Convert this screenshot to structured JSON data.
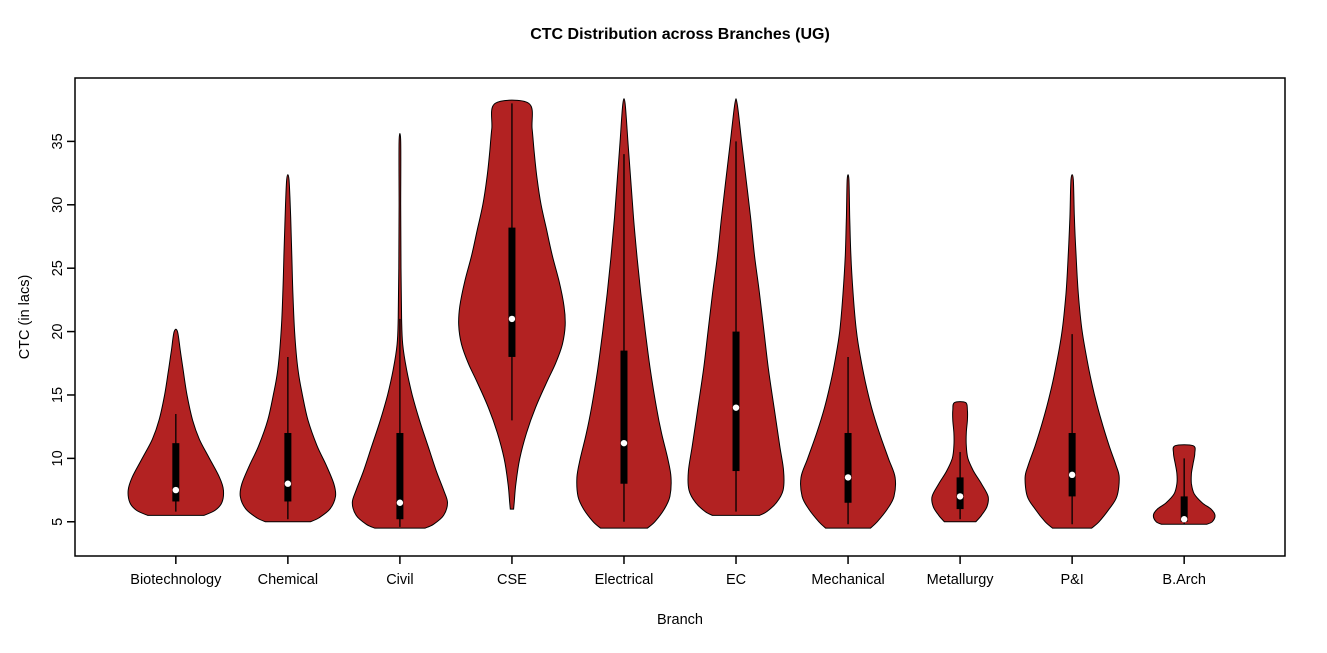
{
  "chart_data": {
    "type": "violin",
    "title": "CTC Distribution across Branches (UG)",
    "xlabel": "Branch",
    "ylabel": "CTC (in lacs)",
    "ylim": [
      2.3,
      40
    ],
    "yticks": [
      5,
      10,
      15,
      20,
      25,
      30,
      35
    ],
    "x_expansion": 0.04,
    "grid": false,
    "legend": "none",
    "categories": [
      "Biotechnology",
      "Chemical",
      "Civil",
      "CSE",
      "Electrical",
      "EC",
      "Mechanical",
      "Metallurgy",
      "P&I",
      "B.Arch"
    ],
    "colors": {
      "violin_fill": "#b22222",
      "violin_stroke": "#000000",
      "box": "#000000",
      "median_dot": "#ffffff",
      "axis": "#000000",
      "background": "#ffffff"
    },
    "series": [
      {
        "name": "Biotechnology",
        "min": 5.5,
        "max": 20,
        "median": 7.5,
        "q1": 6.6,
        "q3": 11.2,
        "whisker_low": 5.8,
        "whisker_high": 13.5,
        "profile": [
          [
            5.5,
            0.5
          ],
          [
            5.9,
            0.7
          ],
          [
            6.5,
            0.82
          ],
          [
            7.5,
            0.85
          ],
          [
            8.5,
            0.78
          ],
          [
            10,
            0.6
          ],
          [
            11.5,
            0.42
          ],
          [
            13,
            0.3
          ],
          [
            15,
            0.2
          ],
          [
            17,
            0.13
          ],
          [
            18.5,
            0.08
          ],
          [
            20,
            0.03
          ]
        ]
      },
      {
        "name": "Chemical",
        "min": 5.0,
        "max": 32,
        "median": 8.0,
        "q1": 6.6,
        "q3": 12.0,
        "whisker_low": 5.2,
        "whisker_high": 18.0,
        "profile": [
          [
            5.0,
            0.4
          ],
          [
            5.3,
            0.55
          ],
          [
            6.0,
            0.75
          ],
          [
            7.0,
            0.85
          ],
          [
            8.0,
            0.82
          ],
          [
            9.5,
            0.68
          ],
          [
            11,
            0.52
          ],
          [
            13,
            0.36
          ],
          [
            15,
            0.26
          ],
          [
            17,
            0.18
          ],
          [
            20,
            0.12
          ],
          [
            23,
            0.09
          ],
          [
            26,
            0.07
          ],
          [
            29,
            0.05
          ],
          [
            32,
            0.02
          ]
        ]
      },
      {
        "name": "Civil",
        "min": 4.5,
        "max": 35,
        "median": 6.5,
        "q1": 5.2,
        "q3": 12.0,
        "whisker_low": 4.6,
        "whisker_high": 21.0,
        "profile": [
          [
            4.5,
            0.45
          ],
          [
            4.8,
            0.6
          ],
          [
            5.5,
            0.78
          ],
          [
            6.5,
            0.85
          ],
          [
            7.5,
            0.78
          ],
          [
            9,
            0.65
          ],
          [
            11,
            0.5
          ],
          [
            13,
            0.35
          ],
          [
            15,
            0.22
          ],
          [
            17,
            0.12
          ],
          [
            19,
            0.05
          ],
          [
            21,
            0.03
          ],
          [
            25,
            0.02
          ],
          [
            30,
            0.015
          ],
          [
            35,
            0.015
          ]
        ]
      },
      {
        "name": "CSE",
        "min": 6.0,
        "max": 38,
        "median": 21.0,
        "q1": 18.0,
        "q3": 28.2,
        "whisker_low": 13.0,
        "whisker_high": 38.0,
        "profile": [
          [
            6,
            0.03
          ],
          [
            6.5,
            0.04
          ],
          [
            8,
            0.07
          ],
          [
            10,
            0.14
          ],
          [
            12,
            0.26
          ],
          [
            14,
            0.42
          ],
          [
            16,
            0.62
          ],
          [
            17.5,
            0.78
          ],
          [
            19,
            0.9
          ],
          [
            20.5,
            0.95
          ],
          [
            22,
            0.93
          ],
          [
            24,
            0.84
          ],
          [
            26,
            0.72
          ],
          [
            28,
            0.62
          ],
          [
            30,
            0.52
          ],
          [
            32,
            0.45
          ],
          [
            34,
            0.4
          ],
          [
            36,
            0.36
          ],
          [
            38,
            0.3
          ]
        ]
      },
      {
        "name": "Electrical",
        "min": 4.5,
        "max": 38,
        "median": 11.2,
        "q1": 8.0,
        "q3": 18.5,
        "whisker_low": 5.0,
        "whisker_high": 34.0,
        "profile": [
          [
            4.5,
            0.42
          ],
          [
            5,
            0.55
          ],
          [
            6,
            0.72
          ],
          [
            7,
            0.82
          ],
          [
            8.5,
            0.84
          ],
          [
            10,
            0.78
          ],
          [
            12,
            0.67
          ],
          [
            14,
            0.58
          ],
          [
            17,
            0.47
          ],
          [
            20,
            0.38
          ],
          [
            23,
            0.3
          ],
          [
            26,
            0.23
          ],
          [
            29,
            0.17
          ],
          [
            32,
            0.12
          ],
          [
            35,
            0.07
          ],
          [
            38,
            0.02
          ]
        ]
      },
      {
        "name": "EC",
        "min": 5.5,
        "max": 38,
        "median": 14.0,
        "q1": 9.0,
        "q3": 20.0,
        "whisker_low": 5.8,
        "whisker_high": 35.0,
        "profile": [
          [
            5.5,
            0.42
          ],
          [
            5.8,
            0.55
          ],
          [
            6.5,
            0.72
          ],
          [
            7.5,
            0.84
          ],
          [
            9,
            0.85
          ],
          [
            11,
            0.78
          ],
          [
            14,
            0.68
          ],
          [
            17,
            0.58
          ],
          [
            20,
            0.5
          ],
          [
            23,
            0.42
          ],
          [
            26,
            0.33
          ],
          [
            29,
            0.26
          ],
          [
            32,
            0.18
          ],
          [
            35,
            0.1
          ],
          [
            38,
            0.02
          ]
        ]
      },
      {
        "name": "Mechanical",
        "min": 4.5,
        "max": 32,
        "median": 8.5,
        "q1": 6.5,
        "q3": 12.0,
        "whisker_low": 4.8,
        "whisker_high": 18.0,
        "profile": [
          [
            4.5,
            0.4
          ],
          [
            5,
            0.52
          ],
          [
            6,
            0.7
          ],
          [
            7,
            0.82
          ],
          [
            8.5,
            0.84
          ],
          [
            10,
            0.72
          ],
          [
            12,
            0.56
          ],
          [
            14,
            0.42
          ],
          [
            16,
            0.31
          ],
          [
            18,
            0.22
          ],
          [
            20,
            0.15
          ],
          [
            23,
            0.09
          ],
          [
            26,
            0.05
          ],
          [
            29,
            0.03
          ],
          [
            32,
            0.015
          ]
        ]
      },
      {
        "name": "Metallurgy",
        "min": 5.0,
        "max": 14.4,
        "median": 7.0,
        "q1": 6.0,
        "q3": 8.5,
        "whisker_low": 5.2,
        "whisker_high": 10.5,
        "profile": [
          [
            5,
            0.28
          ],
          [
            5.5,
            0.38
          ],
          [
            6.2,
            0.48
          ],
          [
            7,
            0.5
          ],
          [
            8,
            0.38
          ],
          [
            9,
            0.24
          ],
          [
            10,
            0.14
          ],
          [
            11,
            0.11
          ],
          [
            12,
            0.11
          ],
          [
            13,
            0.13
          ],
          [
            13.8,
            0.13
          ],
          [
            14.4,
            0.1
          ]
        ]
      },
      {
        "name": "P&I",
        "min": 4.5,
        "max": 32,
        "median": 8.7,
        "q1": 7.0,
        "q3": 12.0,
        "whisker_low": 4.8,
        "whisker_high": 19.8,
        "profile": [
          [
            4.5,
            0.35
          ],
          [
            5,
            0.48
          ],
          [
            6,
            0.66
          ],
          [
            7,
            0.8
          ],
          [
            8.5,
            0.84
          ],
          [
            9.5,
            0.78
          ],
          [
            11,
            0.66
          ],
          [
            13,
            0.52
          ],
          [
            15,
            0.4
          ],
          [
            17,
            0.3
          ],
          [
            20,
            0.18
          ],
          [
            23,
            0.11
          ],
          [
            26,
            0.07
          ],
          [
            29,
            0.04
          ],
          [
            32,
            0.02
          ]
        ]
      },
      {
        "name": "B.Arch",
        "min": 4.8,
        "max": 11,
        "median": 5.2,
        "q1": 5.0,
        "q3": 7.0,
        "whisker_low": 4.8,
        "whisker_high": 10.0,
        "profile": [
          [
            4.8,
            0.4
          ],
          [
            5,
            0.5
          ],
          [
            5.5,
            0.55
          ],
          [
            6,
            0.48
          ],
          [
            6.5,
            0.32
          ],
          [
            7.2,
            0.18
          ],
          [
            8,
            0.13
          ],
          [
            8.8,
            0.13
          ],
          [
            9.6,
            0.16
          ],
          [
            10.4,
            0.19
          ],
          [
            11,
            0.16
          ]
        ]
      }
    ]
  }
}
